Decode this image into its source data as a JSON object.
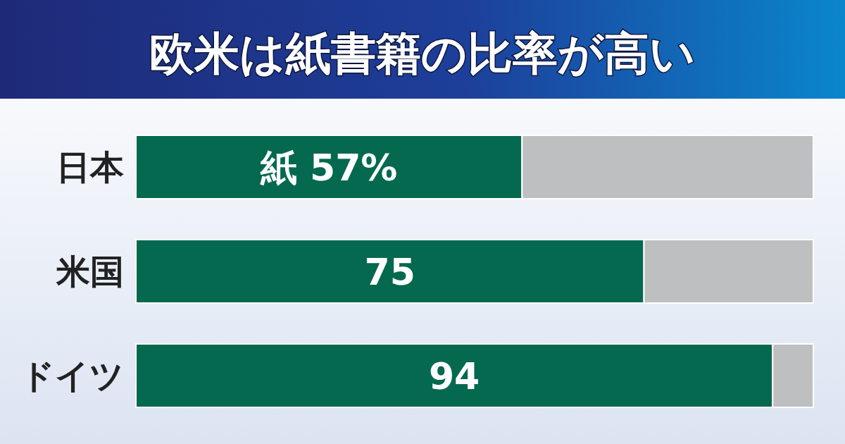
{
  "chart_data": {
    "type": "bar",
    "title": "欧米は紙書籍の比率が高い",
    "orientation": "horizontal",
    "stacked": true,
    "categories": [
      "日本",
      "米国",
      "ドイツ"
    ],
    "xlim": [
      0,
      100
    ],
    "tick_labels": "y",
    "series": [
      {
        "color": "#04694f",
        "values": [
          57,
          75,
          94
        ],
        "value_labels": [
          "紙 57%",
          "75",
          "94"
        ]
      },
      {
        "color": "#bebfc1",
        "values": [
          43,
          25,
          6
        ]
      }
    ]
  }
}
